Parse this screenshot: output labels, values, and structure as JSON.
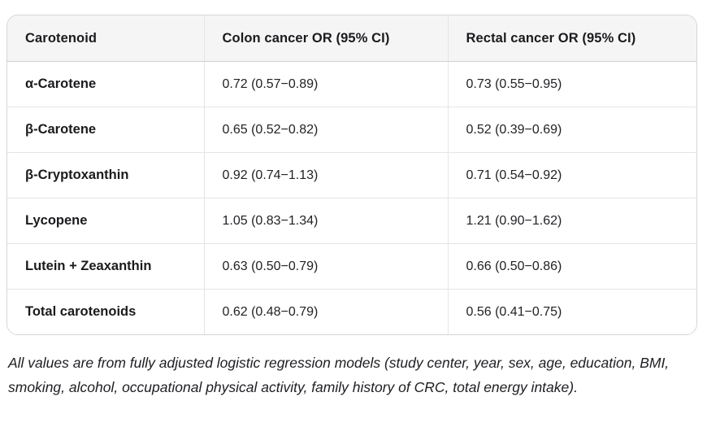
{
  "table": {
    "headers": [
      "Carotenoid",
      "Colon cancer OR (95% CI)",
      "Rectal cancer OR (95% CI)"
    ],
    "rows": [
      {
        "carotenoid": "α-Carotene",
        "colon": "0.72 (0.57−0.89)",
        "rectal": "0.73 (0.55−0.95)"
      },
      {
        "carotenoid": "β-Carotene",
        "colon": "0.65 (0.52−0.82)",
        "rectal": "0.52 (0.39−0.69)"
      },
      {
        "carotenoid": "β-Cryptoxanthin",
        "colon": "0.92 (0.74−1.13)",
        "rectal": "0.71 (0.54−0.92)"
      },
      {
        "carotenoid": "Lycopene",
        "colon": "1.05 (0.83−1.34)",
        "rectal": "1.21 (0.90−1.62)"
      },
      {
        "carotenoid": "Lutein + Zeaxanthin",
        "colon": "0.63 (0.50−0.79)",
        "rectal": "0.66 (0.50−0.86)"
      },
      {
        "carotenoid": "Total carotenoids",
        "colon": "0.62 (0.48−0.79)",
        "rectal": "0.56 (0.41−0.75)"
      }
    ]
  },
  "footnote": "All values are from fully adjusted logistic regression models (study center, year, sex, age, education, BMI, smoking, alcohol, occupational physical activity, family history of CRC, total energy intake).",
  "colors": {
    "header_bg": "#f5f5f6",
    "outer_border": "#d6d6d8",
    "inner_border": "#e5e5e8",
    "header_rule": "#cfcfd3",
    "text": "#1b1b1e"
  }
}
